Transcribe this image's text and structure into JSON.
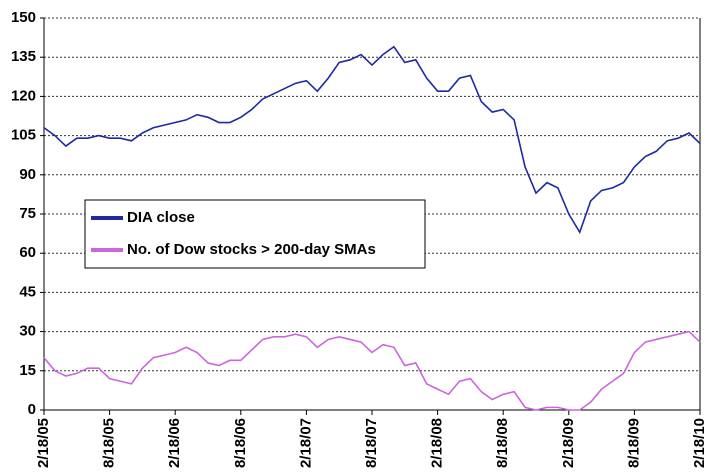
{
  "chart_data": {
    "type": "line",
    "x": [
      "2/18/05",
      "3/18/05",
      "4/18/05",
      "5/18/05",
      "6/18/05",
      "7/18/05",
      "8/18/05",
      "9/18/05",
      "10/18/05",
      "11/18/05",
      "12/18/05",
      "1/18/06",
      "2/18/06",
      "3/18/06",
      "4/18/06",
      "5/18/06",
      "6/18/06",
      "7/18/06",
      "8/18/06",
      "9/18/06",
      "10/18/06",
      "11/18/06",
      "12/18/06",
      "1/18/07",
      "2/18/07",
      "3/18/07",
      "4/18/07",
      "5/18/07",
      "6/18/07",
      "7/18/07",
      "8/18/07",
      "9/18/07",
      "10/18/07",
      "11/18/07",
      "12/18/07",
      "1/18/08",
      "2/18/08",
      "3/18/08",
      "4/18/08",
      "5/18/08",
      "6/18/08",
      "7/18/08",
      "8/18/08",
      "9/18/08",
      "10/18/08",
      "11/18/08",
      "12/18/08",
      "1/18/09",
      "2/18/09",
      "3/18/09",
      "4/18/09",
      "5/18/09",
      "6/18/09",
      "7/18/09",
      "8/18/09",
      "9/18/09",
      "10/18/09",
      "11/18/09",
      "12/18/09",
      "1/18/10",
      "2/18/10"
    ],
    "xticks": [
      "2/18/05",
      "8/18/05",
      "2/18/06",
      "8/18/06",
      "2/18/07",
      "8/18/07",
      "2/18/08",
      "8/18/08",
      "2/18/09",
      "8/18/09",
      "2/18/10"
    ],
    "series": [
      {
        "name": "DIA close",
        "color": "#1f2aa0",
        "values": [
          108,
          105,
          101,
          104,
          104,
          105,
          104,
          104,
          103,
          106,
          108,
          109,
          110,
          111,
          113,
          112,
          110,
          110,
          112,
          115,
          119,
          121,
          123,
          125,
          126,
          122,
          127,
          133,
          134,
          136,
          132,
          136,
          139,
          133,
          134,
          127,
          122,
          122,
          127,
          128,
          118,
          114,
          115,
          111,
          93,
          83,
          87,
          85,
          75,
          68,
          80,
          84,
          85,
          87,
          93,
          97,
          99,
          103,
          104,
          106,
          102
        ]
      },
      {
        "name": "No. of Dow stocks > 200-day SMAs",
        "color": "#cc66dd",
        "values": [
          20,
          15,
          13,
          14,
          16,
          16,
          12,
          11,
          10,
          16,
          20,
          21,
          22,
          24,
          22,
          18,
          17,
          19,
          19,
          23,
          27,
          28,
          28,
          29,
          28,
          24,
          27,
          28,
          27,
          26,
          22,
          25,
          24,
          17,
          18,
          10,
          8,
          6,
          11,
          12,
          7,
          4,
          6,
          7,
          1,
          0,
          1,
          1,
          0,
          0,
          3,
          8,
          11,
          14,
          22,
          26,
          27,
          28,
          29,
          30,
          26
        ]
      }
    ],
    "ylim": [
      0,
      150
    ],
    "yticks": [
      0,
      15,
      30,
      45,
      60,
      75,
      90,
      105,
      120,
      135,
      150
    ],
    "grid": true,
    "legend": "middle-left"
  }
}
